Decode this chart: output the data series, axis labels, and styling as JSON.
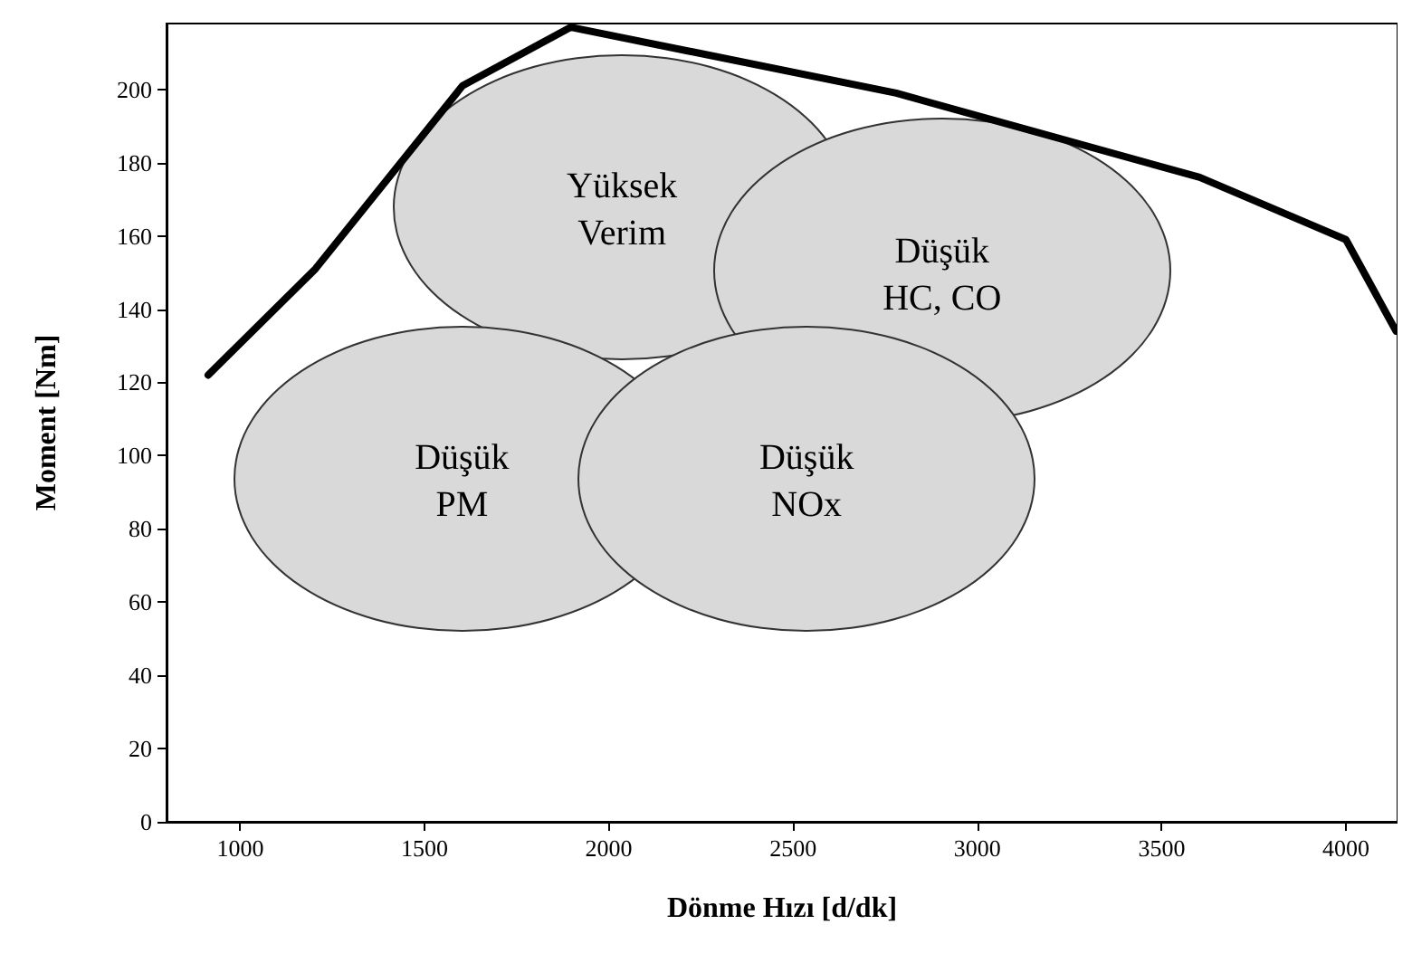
{
  "chart_data": {
    "type": "line",
    "xlabel": "Dönme Hızı [d/dk]",
    "ylabel": "Moment [Nm]",
    "x": [
      913,
      1204,
      1603,
      1897,
      2780,
      3603,
      4000,
      4136
    ],
    "series": [
      {
        "color": "#000000",
        "values": [
          122,
          151,
          201,
          217,
          199,
          176,
          159,
          134
        ]
      }
    ],
    "xlim": [
      800,
      4140
    ],
    "ylim": [
      0,
      218
    ],
    "xticks": [
      1000,
      1500,
      2000,
      2500,
      3000,
      3500,
      4000
    ],
    "yticks": [
      0,
      20,
      40,
      60,
      80,
      100,
      120,
      140,
      160,
      180,
      200
    ],
    "grid": false,
    "marker": "none",
    "line_style": "solid",
    "annotations": [
      "Yüksek\nVerim",
      "Düşük\nHC, CO",
      "Düşük\nPM",
      "Düşük\nNOx"
    ]
  }
}
